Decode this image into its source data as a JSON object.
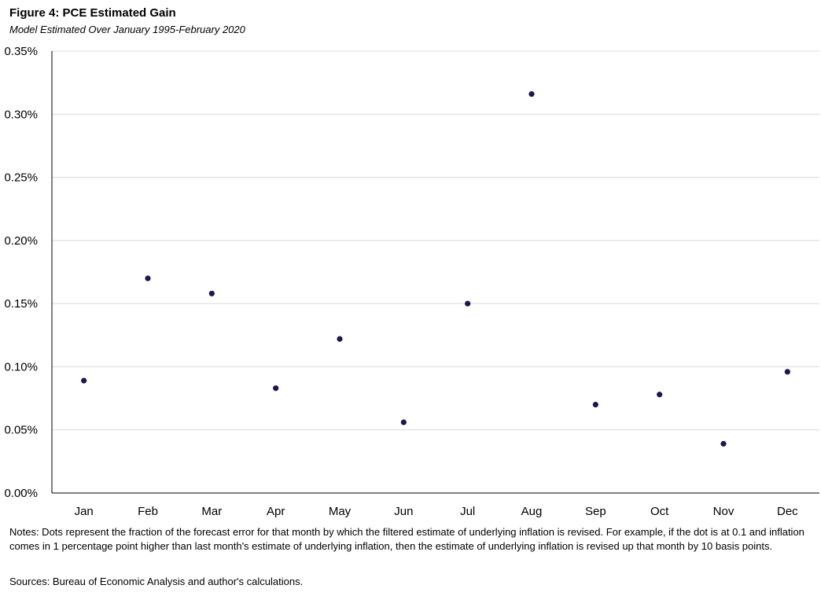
{
  "header": {
    "title": "Figure 4: PCE Estimated Gain",
    "subtitle": "Model Estimated Over January 1995-February 2020"
  },
  "footer": {
    "notes": "Notes: Dots represent the fraction of the forecast error for that month by which the filtered estimate of underlying inflation is revised. For example, if the dot is at 0.1 and inflation comes in 1 percentage point higher than last month's estimate of underlying inflation, then the estimate of underlying inflation is revised up that month by 10 basis points.",
    "sources": "Sources: Bureau of Economic Analysis and author's calculations."
  },
  "chart_data": {
    "type": "scatter",
    "title": "Figure 4: PCE Estimated Gain",
    "subtitle": "Model Estimated Over January 1995-February 2020",
    "xlabel": "",
    "ylabel": "",
    "categories": [
      "Jan",
      "Feb",
      "Mar",
      "Apr",
      "May",
      "Jun",
      "Jul",
      "Aug",
      "Sep",
      "Oct",
      "Nov",
      "Dec"
    ],
    "values": [
      0.089,
      0.17,
      0.158,
      0.083,
      0.122,
      0.056,
      0.15,
      0.316,
      0.07,
      0.078,
      0.039,
      0.096
    ],
    "ylim": [
      0,
      0.35
    ],
    "yticks": [
      0,
      0.05,
      0.1,
      0.15,
      0.2,
      0.25,
      0.3,
      0.35
    ],
    "ytick_labels": [
      "0.00%",
      "0.05%",
      "0.10%",
      "0.15%",
      "0.20%",
      "0.25%",
      "0.30%",
      "0.35%"
    ],
    "grid": "horizontal",
    "legend": "none",
    "marker_color": "#1f1650",
    "grid_color": "#d9d9d9",
    "axis_color": "#000000"
  }
}
